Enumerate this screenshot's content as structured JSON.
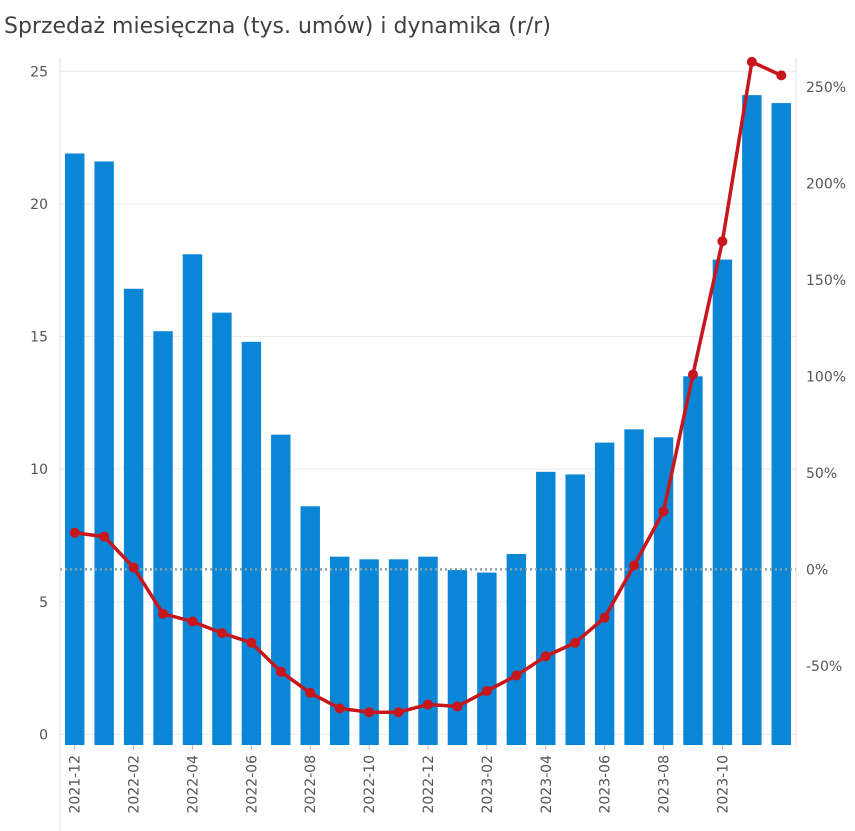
{
  "chart_data": {
    "type": "bar",
    "title": "Sprzedaż miesięczna (tys. umów) i dynamika (r/r)",
    "xlabel": "",
    "ylabel": "",
    "categories": [
      "2021-12",
      "2022-01",
      "2022-02",
      "2022-03",
      "2022-04",
      "2022-05",
      "2022-06",
      "2022-07",
      "2022-08",
      "2022-09",
      "2022-10",
      "2022-11",
      "2022-12",
      "2023-01",
      "2023-02",
      "2023-03",
      "2023-04",
      "2023-05",
      "2023-06",
      "2023-07",
      "2023-08",
      "2023-09",
      "2023-10",
      "2023-11",
      "2023-12"
    ],
    "x_tick_labels": [
      "2021-12",
      "2022-02",
      "2022-04",
      "2022-06",
      "2022-08",
      "2022-10",
      "2022-12",
      "2023-02",
      "2023-04",
      "2023-06",
      "2023-08",
      "2023-10"
    ],
    "series": [
      {
        "type": "bar",
        "axis": "left",
        "color": "#0a86d6",
        "values": [
          21.9,
          21.6,
          16.8,
          15.2,
          18.1,
          15.9,
          14.8,
          11.3,
          8.6,
          6.7,
          6.6,
          6.6,
          6.7,
          6.2,
          6.1,
          6.8,
          9.9,
          9.8,
          11.0,
          11.5,
          11.2,
          13.5,
          17.9,
          24.1,
          23.8
        ]
      },
      {
        "type": "line",
        "axis": "right",
        "color": "#c8161d",
        "values": [
          19,
          17,
          1,
          -23,
          -27,
          -33,
          -38,
          -53,
          -64,
          -72,
          -74,
          -74,
          -70,
          -71,
          -63,
          -55,
          -45,
          -38,
          -25,
          2,
          30,
          101,
          170,
          263,
          256
        ]
      }
    ],
    "y_left": {
      "ylim": [
        -0.4,
        25.5
      ],
      "ticks": [
        0,
        5,
        10,
        15,
        20,
        25
      ]
    },
    "y_right": {
      "ylim": [
        -91,
        265
      ],
      "ticks": [
        -50,
        0,
        50,
        100,
        150,
        200,
        250
      ],
      "tick_format": "%",
      "reference_line": 0
    },
    "grid": true,
    "legend": "none"
  }
}
